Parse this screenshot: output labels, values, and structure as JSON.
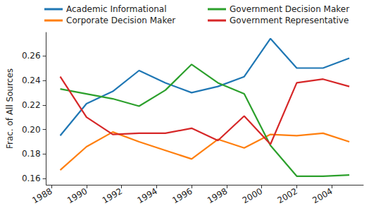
{
  "chart_data": {
    "type": "line",
    "y_label": "Frac. of All Sources",
    "x": [
      1988.5,
      1990,
      1991.5,
      1993,
      1994.5,
      1996,
      1997.5,
      1999,
      2000.5,
      2002,
      2003.5,
      2005
    ],
    "series": [
      {
        "name": "Academic Informational",
        "color": "#1f77b4",
        "values": [
          0.195,
          0.221,
          0.231,
          0.248,
          0.238,
          0.23,
          0.235,
          0.243,
          0.274,
          0.25,
          0.25,
          0.258
        ]
      },
      {
        "name": "Corporate Decision Maker",
        "color": "#ff7f0e",
        "values": [
          0.167,
          0.186,
          0.198,
          0.19,
          0.183,
          0.176,
          0.192,
          0.185,
          0.196,
          0.195,
          0.197,
          0.19
        ]
      },
      {
        "name": "Government Decision Maker",
        "color": "#2ca02c",
        "values": [
          0.233,
          0.229,
          0.225,
          0.219,
          0.232,
          0.253,
          0.238,
          0.229,
          0.187,
          0.162,
          0.162,
          0.163
        ]
      },
      {
        "name": "Government Representative",
        "color": "#d62728",
        "values": [
          0.243,
          0.21,
          0.196,
          0.197,
          0.197,
          0.201,
          0.191,
          0.211,
          0.188,
          0.238,
          0.241,
          0.235
        ]
      }
    ],
    "xlim": [
      1987.7,
      2005.8
    ],
    "xticks": [
      1988,
      1990,
      1992,
      1994,
      1996,
      1998,
      2000,
      2002,
      2004
    ],
    "ylim": [
      0.155,
      0.279
    ],
    "yticks": [
      {
        "value": 0.16,
        "label": "0.16"
      },
      {
        "value": 0.18,
        "label": "0.18"
      },
      {
        "value": 0.2,
        "label": "0.20"
      },
      {
        "value": 0.22,
        "label": "0.22"
      },
      {
        "value": 0.24,
        "label": "0.24"
      },
      {
        "value": 0.26,
        "label": "0.26"
      }
    ],
    "grid": false,
    "legend": "top"
  }
}
